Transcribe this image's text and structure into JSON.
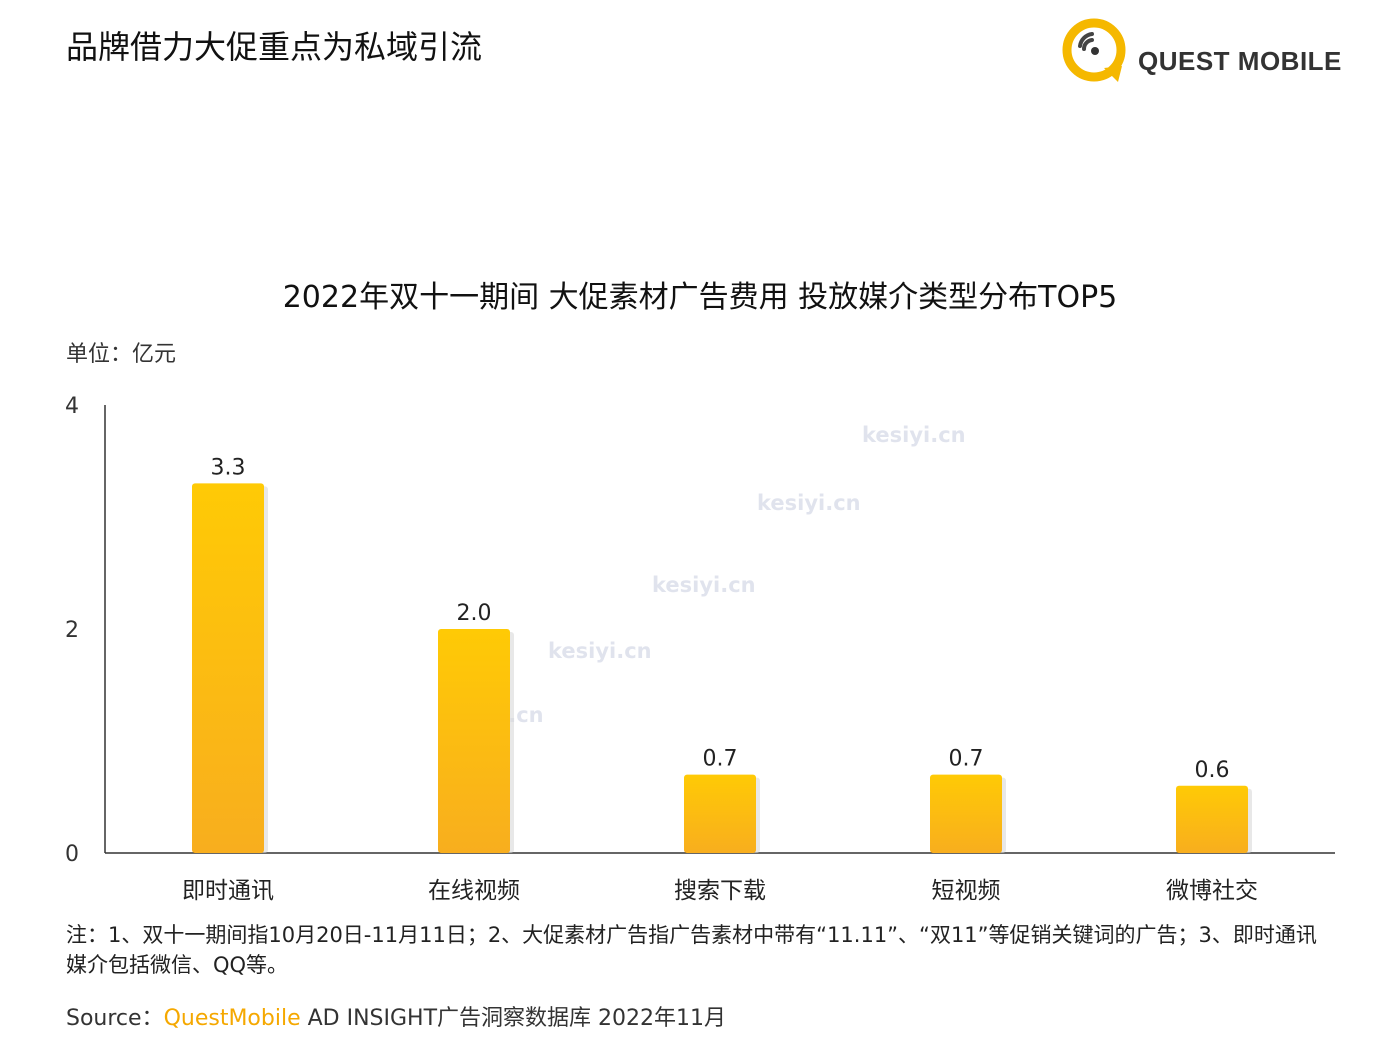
{
  "header": {
    "title": "品牌借力大促重点为私域引流",
    "logo_text": "QUEST MOBILE"
  },
  "chart_data": {
    "type": "bar",
    "title": "2022年双十一期间 大促素材广告费用 投放媒介类型分布TOP5",
    "unit_label": "单位：亿元",
    "categories": [
      "即时通讯",
      "在线视频",
      "搜索下载",
      "短视频",
      "微博社交"
    ],
    "values": [
      3.3,
      2.0,
      0.7,
      0.7,
      0.6
    ],
    "value_labels": [
      "3.3",
      "2.0",
      "0.7",
      "0.7",
      "0.6"
    ],
    "yticks": [
      0,
      2,
      4
    ],
    "ylim": [
      0,
      4
    ],
    "bar_colors": [
      "#ffca05",
      "#f8ae1e"
    ]
  },
  "watermark": "kesiyi.cn",
  "footer": {
    "note": "注：1、双十一期间指10月20日-11月11日；2、大促素材广告指广告素材中带有“11.11”、“双11”等促销关键词的广告；3、即时通讯媒介包括微信、QQ等。",
    "source_prefix": "Source：",
    "source_brand": "QuestMobile",
    "source_rest": " AD INSIGHT广告洞察数据库 2022年11月"
  }
}
